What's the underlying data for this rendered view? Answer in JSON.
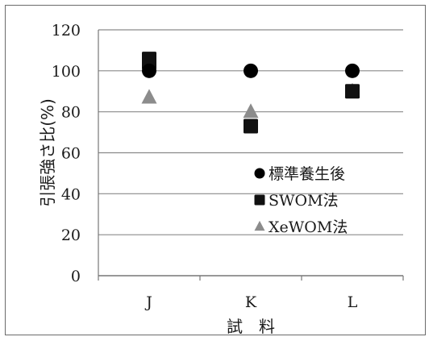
{
  "chart_data": {
    "type": "scatter",
    "title": "",
    "xlabel": "試　料",
    "ylabel": "引張強さ比(%)",
    "categories": [
      "J",
      "K",
      "L"
    ],
    "ylim": [
      0,
      120
    ],
    "yticks": [
      "0",
      "20",
      "40",
      "60",
      "80",
      "100",
      "120"
    ],
    "grid": true,
    "legend_position": "lower-right",
    "series": [
      {
        "name": "標準養生後",
        "marker": "circle",
        "color": "#000000",
        "values": [
          100,
          100,
          100
        ]
      },
      {
        "name": "SWOM法",
        "marker": "square",
        "color": "#111111",
        "values": [
          105,
          73,
          90
        ]
      },
      {
        "name": "XeWOM法",
        "marker": "triangle",
        "color": "#8c8c8c",
        "values": [
          87,
          80,
          90
        ]
      }
    ]
  }
}
